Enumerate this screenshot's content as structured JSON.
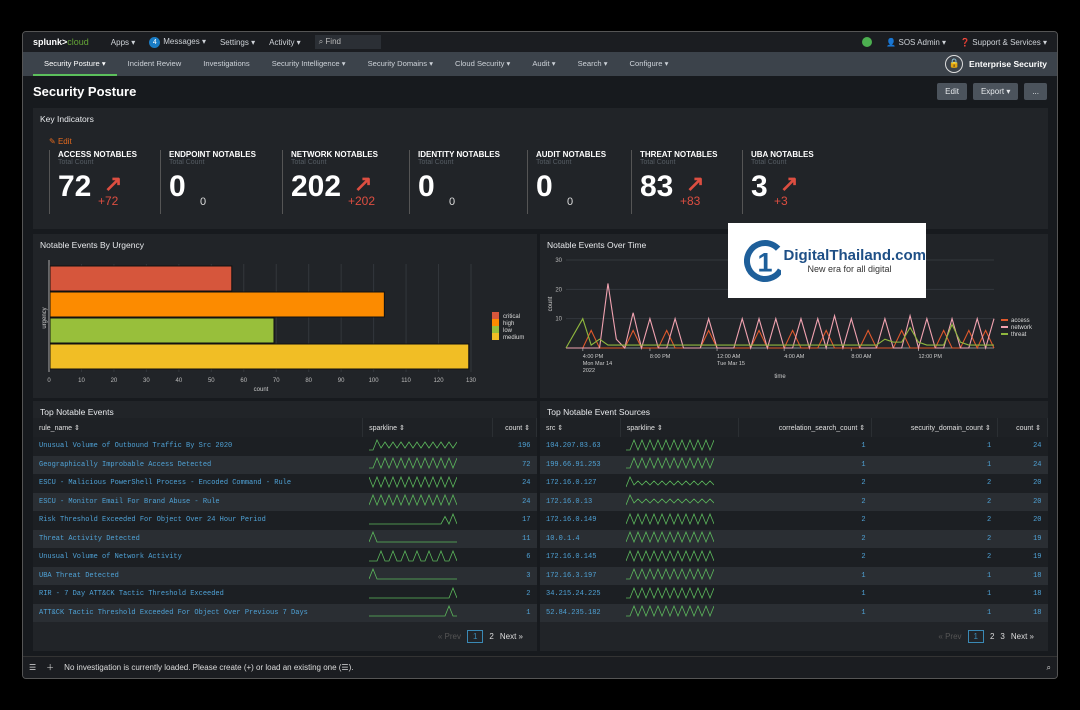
{
  "topbar": {
    "logo_a": "splunk>",
    "logo_b": "cloud",
    "apps": "Apps ▾",
    "messages_count": "4",
    "messages": "Messages ▾",
    "settings": "Settings ▾",
    "activity": "Activity ▾",
    "find": "Find",
    "user": "SOS Admin ▾",
    "support": "Support & Services ▾"
  },
  "nav": {
    "items": [
      "Security Posture ▾",
      "Incident Review",
      "Investigations",
      "Security Intelligence ▾",
      "Security Domains ▾",
      "Cloud Security ▾",
      "Audit ▾",
      "Search ▾",
      "Configure ▾"
    ],
    "app_name": "Enterprise Security"
  },
  "page": {
    "title": "Security Posture",
    "edit": "Edit",
    "export": "Export ▾",
    "more": "..."
  },
  "key_indicators": {
    "title": "Key Indicators",
    "edit": "Edit",
    "subtitle": "Total Count",
    "items": [
      {
        "name": "ACCESS NOTABLES",
        "value": "72",
        "delta": "+72",
        "trend": "up"
      },
      {
        "name": "ENDPOINT NOTABLES",
        "value": "0",
        "delta": "0",
        "trend": "none"
      },
      {
        "name": "NETWORK NOTABLES",
        "value": "202",
        "delta": "+202",
        "trend": "up"
      },
      {
        "name": "IDENTITY NOTABLES",
        "value": "0",
        "delta": "0",
        "trend": "none"
      },
      {
        "name": "AUDIT NOTABLES",
        "value": "0",
        "delta": "0",
        "trend": "none"
      },
      {
        "name": "THREAT NOTABLES",
        "value": "83",
        "delta": "+83",
        "trend": "up"
      },
      {
        "name": "UBA NOTABLES",
        "value": "3",
        "delta": "+3",
        "trend": "up"
      }
    ]
  },
  "chart_data": [
    {
      "type": "bar",
      "orientation": "horizontal",
      "title": "Notable Events By Urgency",
      "xlabel": "count",
      "ylabel": "urgency",
      "categories": [
        "critical",
        "high",
        "low",
        "medium"
      ],
      "values": [
        56,
        103,
        69,
        129
      ],
      "colors": [
        "#d6563c",
        "#fc8b00",
        "#98bf3b",
        "#f1be25"
      ],
      "xlim": [
        0,
        130
      ],
      "xticks": [
        0,
        10,
        20,
        30,
        40,
        50,
        60,
        70,
        80,
        90,
        100,
        110,
        120,
        130
      ],
      "legend": "right",
      "grid": true
    },
    {
      "type": "line",
      "title": "Notable Events Over Time",
      "xlabel": "time",
      "ylabel": "count",
      "ylim": [
        0,
        30
      ],
      "yticks": [
        10,
        20,
        30
      ],
      "xticks": [
        "4:00 PM\nMon Mar 14\n2022",
        "8:00 PM",
        "12:00 AM\nTue Mar 15",
        "4:00 AM",
        "8:00 AM",
        "12:00 PM"
      ],
      "legend": "right",
      "x_start": "2022-03-14 15:00",
      "x_step_minutes": 30,
      "series": [
        {
          "name": "access",
          "color": "#e0592c",
          "values": [
            0,
            0,
            0,
            6,
            0,
            0,
            0,
            0,
            6,
            0,
            0,
            0,
            6,
            0,
            0,
            0,
            0,
            6,
            0,
            0,
            0,
            0,
            0,
            6,
            0,
            0,
            0,
            6,
            0,
            0,
            0,
            6,
            0,
            0,
            0,
            0,
            6,
            0,
            0,
            0,
            6,
            0,
            0,
            0,
            0,
            6,
            0,
            0,
            6,
            0,
            6,
            0
          ]
        },
        {
          "name": "network",
          "color": "#f0a2b0",
          "values": [
            0,
            0,
            0,
            0,
            0,
            22,
            3,
            0,
            12,
            0,
            10,
            0,
            0,
            10,
            0,
            0,
            0,
            10,
            0,
            0,
            0,
            10,
            0,
            10,
            0,
            10,
            0,
            0,
            10,
            0,
            10,
            0,
            11,
            0,
            10,
            0,
            0,
            0,
            10,
            0,
            0,
            11,
            0,
            10,
            0,
            0,
            10,
            0,
            0,
            10,
            0,
            10
          ]
        },
        {
          "name": "threat",
          "color": "#8fb73e",
          "values": [
            0,
            5,
            10,
            1,
            3,
            1,
            1,
            1,
            1,
            1,
            1,
            1,
            1,
            1,
            1,
            1,
            1,
            1,
            1,
            1,
            1,
            1,
            1,
            1,
            1,
            1,
            1,
            1,
            1,
            1,
            1,
            1,
            1,
            1,
            1,
            1,
            1,
            1,
            3,
            2,
            2,
            7,
            2,
            1,
            1,
            1,
            8,
            2,
            1,
            1,
            1,
            1
          ]
        }
      ]
    }
  ],
  "watermark": {
    "name": "DigitalThailand.com",
    "tagline": "New era for all digital"
  },
  "top_events": {
    "title": "Top Notable Events",
    "headers": [
      "rule_name ⇕",
      "sparkline ⇕",
      "count ⇕"
    ],
    "rows": [
      {
        "rule": "Unusual Volume of Outbound Traffic By Src 2020",
        "count": "196",
        "spark": [
          0,
          0,
          5,
          1,
          4,
          1,
          4,
          1,
          4,
          1,
          4,
          1,
          4,
          1,
          4,
          1,
          4,
          1,
          4,
          1,
          4,
          1,
          4
        ]
      },
      {
        "rule": "Geographically Improbable Access Detected",
        "count": "72",
        "spark": [
          0,
          0,
          5,
          0,
          5,
          0,
          5,
          0,
          5,
          0,
          5,
          0,
          5,
          0,
          5,
          0,
          5,
          0,
          5,
          0,
          5,
          0,
          5
        ]
      },
      {
        "rule": "ESCU - Malicious PowerShell Process - Encoded Command - Rule",
        "count": "24",
        "spark": [
          5,
          0,
          5,
          0,
          5,
          0,
          5,
          0,
          5,
          0,
          5,
          0,
          5,
          0,
          5,
          0,
          5,
          0,
          5,
          0,
          5,
          0,
          5
        ]
      },
      {
        "rule": "ESCU - Monitor Email For Brand Abuse - Rule",
        "count": "24",
        "spark": [
          0,
          5,
          0,
          5,
          0,
          5,
          0,
          5,
          0,
          5,
          0,
          5,
          0,
          5,
          0,
          5,
          0,
          5,
          0,
          5,
          0,
          5,
          0
        ]
      },
      {
        "rule": "Risk Threshold Exceeded For Object Over 24 Hour Period",
        "count": "17",
        "spark": [
          0,
          0,
          0,
          0,
          0,
          0,
          0,
          0,
          0,
          0,
          0,
          0,
          0,
          0,
          0,
          0,
          0,
          0,
          0,
          3,
          0,
          4,
          0
        ]
      },
      {
        "rule": "Threat Activity Detected",
        "count": "11",
        "spark": [
          0,
          5,
          0,
          0,
          0,
          0,
          0,
          0,
          0,
          0,
          0,
          0,
          0,
          0,
          0,
          0,
          0,
          0,
          0,
          0,
          0,
          0,
          0
        ]
      },
      {
        "rule": "Unusual Volume of Network Activity",
        "count": "6",
        "spark": [
          0,
          0,
          0,
          4,
          0,
          0,
          4,
          0,
          0,
          4,
          0,
          0,
          4,
          0,
          0,
          4,
          0,
          0,
          4,
          0,
          0,
          4,
          0
        ]
      },
      {
        "rule": "UBA Threat Detected",
        "count": "3",
        "spark": [
          0,
          5,
          0,
          0,
          0,
          0,
          0,
          0,
          0,
          0,
          0,
          0,
          0,
          0,
          0,
          0,
          0,
          0,
          0,
          0,
          0,
          0,
          0
        ]
      },
      {
        "rule": "RIR - 7 Day ATT&CK Tactic Threshold Exceeded",
        "count": "2",
        "spark": [
          0,
          0,
          0,
          0,
          0,
          0,
          0,
          0,
          0,
          0,
          0,
          0,
          0,
          0,
          0,
          0,
          0,
          0,
          0,
          0,
          0,
          5,
          0
        ]
      },
      {
        "rule": "ATT&CK Tactic Threshold Exceeded For Object Over Previous 7 Days",
        "count": "1",
        "spark": [
          0,
          0,
          0,
          0,
          0,
          0,
          0,
          0,
          0,
          0,
          0,
          0,
          0,
          0,
          0,
          0,
          0,
          0,
          0,
          0,
          5,
          0,
          0
        ]
      }
    ],
    "pager": {
      "prev": "« Prev",
      "pages": [
        "1",
        "2"
      ],
      "next": "Next »"
    }
  },
  "top_sources": {
    "title": "Top Notable Event Sources",
    "headers": [
      "src ⇕",
      "sparkline ⇕",
      "correlation_search_count ⇕",
      "security_domain_count ⇕",
      "count ⇕"
    ],
    "rows": [
      {
        "src": "104.207.83.63",
        "csc": "1",
        "sdc": "1",
        "count": "24",
        "spark": [
          0,
          0,
          5,
          0,
          5,
          0,
          5,
          0,
          5,
          0,
          5,
          0,
          5,
          0,
          5,
          0,
          5,
          0,
          5,
          0,
          5,
          0,
          5
        ]
      },
      {
        "src": "199.66.91.253",
        "csc": "1",
        "sdc": "1",
        "count": "24",
        "spark": [
          0,
          0,
          5,
          0,
          5,
          0,
          5,
          0,
          5,
          0,
          5,
          0,
          5,
          0,
          5,
          0,
          5,
          0,
          5,
          0,
          5,
          0,
          5
        ]
      },
      {
        "src": "172.16.0.127",
        "csc": "2",
        "sdc": "2",
        "count": "20",
        "spark": [
          0,
          5,
          1,
          3,
          1,
          3,
          1,
          3,
          1,
          3,
          1,
          3,
          1,
          3,
          1,
          3,
          1,
          3,
          1,
          3,
          1,
          3,
          1
        ]
      },
      {
        "src": "172.16.0.13",
        "csc": "2",
        "sdc": "2",
        "count": "20",
        "spark": [
          0,
          5,
          1,
          3,
          1,
          3,
          1,
          3,
          1,
          3,
          1,
          3,
          1,
          3,
          1,
          3,
          1,
          3,
          1,
          3,
          1,
          3,
          1
        ]
      },
      {
        "src": "172.16.0.149",
        "csc": "2",
        "sdc": "2",
        "count": "20",
        "spark": [
          0,
          5,
          0,
          5,
          0,
          5,
          0,
          5,
          0,
          5,
          0,
          5,
          0,
          5,
          0,
          5,
          0,
          5,
          0,
          5,
          0,
          5,
          0
        ]
      },
      {
        "src": "10.0.1.4",
        "csc": "2",
        "sdc": "2",
        "count": "19",
        "spark": [
          0,
          5,
          0,
          5,
          0,
          5,
          0,
          5,
          0,
          5,
          0,
          5,
          0,
          5,
          0,
          5,
          0,
          5,
          0,
          5,
          0,
          5,
          0
        ]
      },
      {
        "src": "172.16.0.145",
        "csc": "2",
        "sdc": "2",
        "count": "19",
        "spark": [
          0,
          5,
          0,
          5,
          0,
          5,
          0,
          5,
          0,
          5,
          0,
          5,
          0,
          5,
          0,
          5,
          0,
          5,
          0,
          5,
          0,
          5,
          0
        ]
      },
      {
        "src": "172.16.3.197",
        "csc": "1",
        "sdc": "1",
        "count": "18",
        "spark": [
          0,
          0,
          5,
          0,
          5,
          0,
          5,
          0,
          5,
          0,
          5,
          0,
          5,
          0,
          5,
          0,
          5,
          0,
          5,
          0,
          5,
          0,
          5
        ]
      },
      {
        "src": "34.215.24.225",
        "csc": "1",
        "sdc": "1",
        "count": "18",
        "spark": [
          0,
          0,
          5,
          0,
          5,
          0,
          5,
          0,
          5,
          0,
          5,
          0,
          5,
          0,
          5,
          0,
          5,
          0,
          5,
          0,
          5,
          0,
          5
        ]
      },
      {
        "src": "52.84.235.182",
        "csc": "1",
        "sdc": "1",
        "count": "18",
        "spark": [
          0,
          0,
          5,
          0,
          5,
          0,
          5,
          0,
          5,
          0,
          5,
          0,
          5,
          0,
          5,
          0,
          5,
          0,
          5,
          0,
          5,
          0,
          5
        ]
      }
    ],
    "pager": {
      "prev": "« Prev",
      "pages": [
        "1",
        "2",
        "3"
      ],
      "next": "Next »"
    }
  },
  "bottombar": {
    "message": "No investigation is currently loaded. Please create (+) or load an existing one (☰)."
  },
  "colors": {
    "accent_green": "#5cc05c",
    "link_blue": "#4fa2d6",
    "alert_red": "#dc4e41",
    "sparkline": "#5cb85c"
  }
}
